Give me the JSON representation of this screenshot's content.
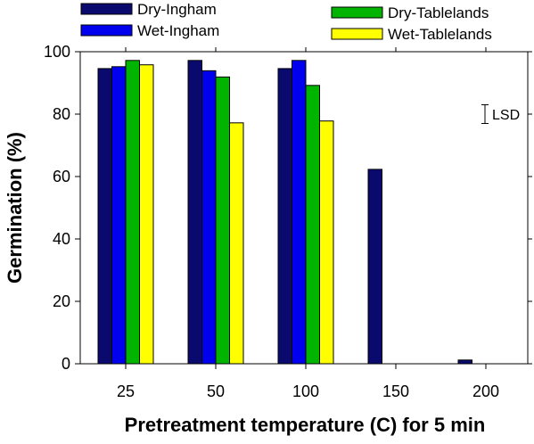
{
  "chart_data": {
    "type": "bar",
    "xlabel": "Pretreatment temperature (C) for 5 min",
    "ylabel": "Germination (%)",
    "ylim": [
      0,
      100
    ],
    "yticks": [
      0,
      20,
      40,
      60,
      80,
      100
    ],
    "categories": [
      "25",
      "50",
      "100",
      "150",
      "200"
    ],
    "series": [
      {
        "name": "Dry-Ingham",
        "color": "#0a0a6e",
        "values": [
          94.6,
          97.2,
          94.6,
          62.3,
          1.2
        ]
      },
      {
        "name": "Wet-Ingham",
        "color": "#0000ee",
        "values": [
          95.2,
          93.9,
          97.2,
          0,
          0
        ]
      },
      {
        "name": "Dry-Tablelands",
        "color": "#00b400",
        "values": [
          97.2,
          91.9,
          89.2,
          0,
          0
        ]
      },
      {
        "name": "Wet-Tablelands",
        "color": "#ffff00",
        "values": [
          95.8,
          77.2,
          77.8,
          0,
          0
        ]
      }
    ],
    "annotation": {
      "label": "LSD",
      "center": 80,
      "half_range": 3
    },
    "grid": false,
    "legend_position": "top"
  }
}
